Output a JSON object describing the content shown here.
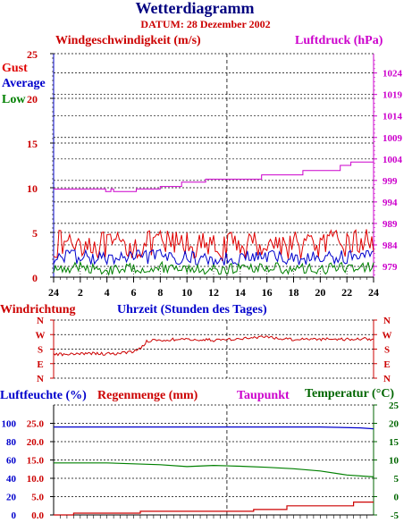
{
  "chart_data": [
    {
      "type": "line",
      "title": "Wetterdiagramm",
      "subtitle": "DATUM: 28 Dezember 2002",
      "ylabel_left": "Windgeschwindigkeit (m/s)",
      "ylabel_right": "Luftdruck (hPa)",
      "xlabel": "Uhrzeit (Stunden des Tages)",
      "x_ticks": [
        "24",
        "2",
        "4",
        "6",
        "8",
        "10",
        "12",
        "14",
        "16",
        "18",
        "20",
        "22",
        "24"
      ],
      "y_ticks_left": [
        0,
        5,
        10,
        15,
        20,
        25
      ],
      "y_ticks_right": [
        979,
        984,
        989,
        994,
        999,
        1004,
        1009,
        1014,
        1019,
        1024
      ],
      "ylim_left": [
        0,
        25
      ],
      "ylim_right": [
        976.5,
        1028.5
      ],
      "grid": true,
      "legend": [
        "Gust",
        "Average",
        "Low"
      ],
      "colors": {
        "gust": "#e00000",
        "average": "#0000cc",
        "low": "#008000",
        "pressure": "#cc00cc",
        "title": "#000080",
        "date": "#cc0000"
      },
      "series": [
        {
          "name": "Gust",
          "color": "#e00000",
          "x": [
            0,
            2,
            4,
            6,
            8,
            10,
            12,
            14,
            16,
            18,
            20,
            22,
            24
          ],
          "values": [
            3.6,
            4.0,
            3.4,
            3.5,
            3.7,
            3.7,
            3.2,
            3.6,
            3.8,
            3.6,
            3.6,
            3.8,
            4.0
          ]
        },
        {
          "name": "Average",
          "color": "#0000cc",
          "x": [
            0,
            2,
            4,
            6,
            8,
            10,
            12,
            14,
            16,
            18,
            20,
            22,
            24
          ],
          "values": [
            2.2,
            2.3,
            2.0,
            2.2,
            2.3,
            2.2,
            1.9,
            2.2,
            2.3,
            2.1,
            2.1,
            2.3,
            2.4
          ]
        },
        {
          "name": "Low",
          "color": "#008000",
          "x": [
            0,
            2,
            4,
            6,
            8,
            10,
            12,
            14,
            16,
            18,
            20,
            22,
            24
          ],
          "values": [
            1.0,
            1.1,
            0.8,
            1.0,
            1.1,
            1.0,
            0.8,
            1.0,
            1.1,
            0.9,
            0.9,
            1.1,
            1.2
          ]
        },
        {
          "name": "Luftdruck",
          "color": "#cc00cc",
          "x": [
            0,
            3.7,
            3.9,
            4.3,
            4.5,
            6.2,
            8.0,
            9.6,
            11.4,
            14.3,
            15.6,
            18.7,
            21.5,
            22.3,
            24
          ],
          "values": [
            997,
            997,
            996.4,
            997,
            996.4,
            997,
            997.6,
            998.6,
            999.3,
            999.3,
            1000.3,
            1001.3,
            1002.5,
            1003.3,
            1003.3
          ]
        }
      ]
    },
    {
      "type": "line",
      "ylabel": "Windrichtung",
      "xlabel": "",
      "y_ticks": [
        "N",
        "W",
        "S",
        "E",
        "N"
      ],
      "ylim": [
        0,
        360
      ],
      "series": [
        {
          "name": "Windrichtung",
          "color": "#cc0000",
          "x": [
            0,
            1,
            2,
            3,
            4,
            5,
            6,
            6.5,
            7,
            8,
            9,
            10,
            11,
            12,
            13,
            14,
            15,
            16,
            17,
            18,
            19,
            20,
            21,
            22,
            23,
            24
          ],
          "values": [
            150,
            145,
            150,
            155,
            150,
            155,
            165,
            185,
            230,
            235,
            240,
            238,
            240,
            235,
            240,
            245,
            250,
            255,
            245,
            240,
            245,
            240,
            245,
            240,
            245,
            240
          ]
        }
      ]
    },
    {
      "type": "line",
      "ylabel_left": "Luftfeuchte (%)",
      "ylabel_left2": "Regenmenge (mm)",
      "ylabel_right": "Temperatur (°C)",
      "legend_extra": "Taupunkt",
      "y_ticks_humidity": [
        0,
        20,
        40,
        60,
        80,
        100
      ],
      "y_ticks_rain": [
        "0.0",
        "5.0",
        "10.0",
        "15.0",
        "20.0",
        "25.0"
      ],
      "y_ticks_temp": [
        -5,
        0,
        5,
        10,
        15,
        20,
        25
      ],
      "ylim_temp": [
        -5,
        25
      ],
      "series": [
        {
          "name": "Luftfeuchte",
          "color": "#0000cc",
          "x": [
            0,
            4,
            8,
            12,
            16,
            20,
            23,
            24
          ],
          "values": [
            96,
            96,
            96,
            96,
            96,
            96,
            95,
            94
          ]
        },
        {
          "name": "Regenmenge",
          "color": "#cc0000",
          "x": [
            0,
            1.5,
            6.5,
            15,
            17.5,
            22.5,
            24
          ],
          "values": [
            0.0,
            0.5,
            1.0,
            1.5,
            2.5,
            3.5,
            3.5
          ]
        },
        {
          "name": "Temperatur",
          "color": "#008000",
          "x": [
            0,
            4,
            8,
            10,
            12,
            14,
            16,
            18,
            20,
            22,
            24
          ],
          "values": [
            9.2,
            9.2,
            8.7,
            8.2,
            8.5,
            8.3,
            8.0,
            7.6,
            7.0,
            5.9,
            5.4
          ]
        }
      ]
    }
  ]
}
